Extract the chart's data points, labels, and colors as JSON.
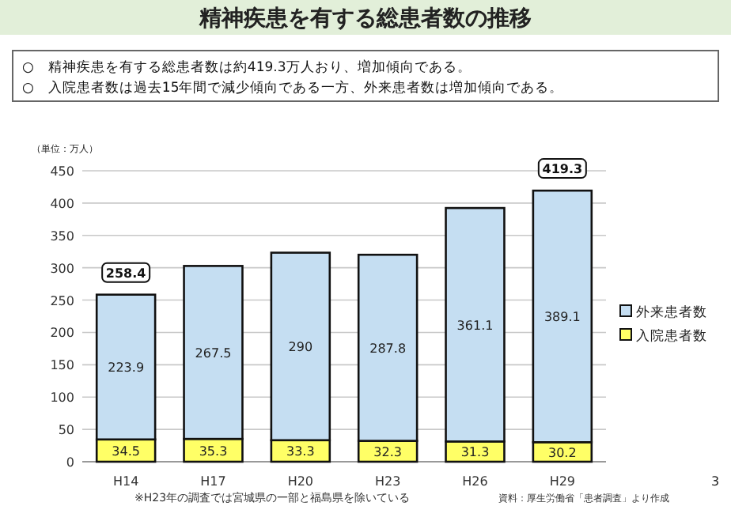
{
  "chart_data": {
    "type": "bar",
    "title": "精神疾患を有する総患者数の推移",
    "annotations": [
      "○　精神疾患を有する総患者数は約419.3万人おり、増加傾向である。",
      "○　入院患者数は過去15年間で減少傾向である一方、外来患者数は増加傾向である。",
      "（単位：万人）",
      "※H23年の調査では宮城県の一部と福島県を除いている",
      "資料：厚生労働省「患者調査」より作成",
      "3"
    ],
    "categories": [
      "H14",
      "H17",
      "H20",
      "H23",
      "H26",
      "H29"
    ],
    "stacked": true,
    "series": [
      {
        "name": "入院患者数",
        "color": "#ffff66",
        "values": [
          34.5,
          35.3,
          33.3,
          32.3,
          31.3,
          30.2
        ]
      },
      {
        "name": "外来患者数",
        "color": "#c5def2",
        "values": [
          223.9,
          267.5,
          290,
          287.8,
          361.1,
          389.1
        ]
      }
    ],
    "totals": [
      "258.4",
      null,
      null,
      null,
      null,
      "419.3"
    ],
    "data_labels": true,
    "ylim": [
      0,
      450
    ],
    "yticks": [
      0,
      50,
      100,
      150,
      200,
      250,
      300,
      350,
      400,
      450
    ],
    "grid": "y",
    "legend": "right"
  }
}
